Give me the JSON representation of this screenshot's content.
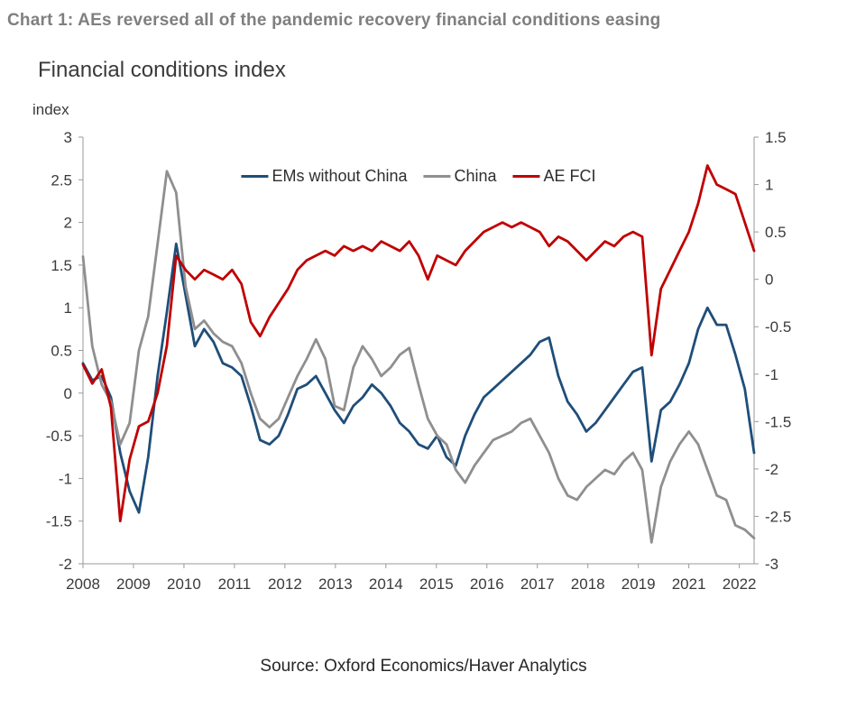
{
  "header": {
    "title": "Chart 1: AEs reversed all of the pandemic recovery financial conditions easing"
  },
  "footer": {
    "source": "Source: Oxford Economics/Haver Analytics"
  },
  "chart_data": {
    "type": "line",
    "title": "Financial conditions index",
    "grid": false,
    "legend_position": "top-center-inside",
    "x_start": 2008.0,
    "x_step": 0.2,
    "x_axis": {
      "labels": [
        "2008",
        "2009",
        "2010",
        "2011",
        "2012",
        "2013",
        "2014",
        "2015",
        "2016",
        "2017",
        "2018",
        "2019",
        "2021",
        "2022"
      ],
      "first_label_x": 2008.0,
      "label_step_years": 1.0833
    },
    "left_axis": {
      "unit": "index",
      "min": -2,
      "max": 3,
      "tick_labels": [
        "3",
        "2.5",
        "2",
        "1.5",
        "1",
        "0.5",
        "0",
        "-0.5",
        "-1",
        "-1.5",
        "-2"
      ]
    },
    "right_axis": {
      "min": -3,
      "max": 1.5,
      "tick_labels": [
        "1.5",
        "1",
        "0.5",
        "0",
        "-0.5",
        "-1",
        "-1.5",
        "-2",
        "-2.5",
        "-3"
      ]
    },
    "series": [
      {
        "name": "EMs without China",
        "color": "#1F4E79",
        "axis": "left",
        "values": [
          0.35,
          0.15,
          0.2,
          -0.05,
          -0.7,
          -1.15,
          -1.4,
          -0.75,
          0.2,
          0.95,
          1.75,
          1.15,
          0.55,
          0.75,
          0.6,
          0.35,
          0.3,
          0.2,
          -0.15,
          -0.55,
          -0.6,
          -0.5,
          -0.25,
          0.05,
          0.1,
          0.2,
          0,
          -0.2,
          -0.35,
          -0.15,
          -0.05,
          0.1,
          0,
          -0.15,
          -0.35,
          -0.45,
          -0.6,
          -0.65,
          -0.5,
          -0.75,
          -0.85,
          -0.5,
          -0.25,
          -0.05,
          0.05,
          0.15,
          0.25,
          0.35,
          0.45,
          0.6,
          0.65,
          0.2,
          -0.1,
          -0.25,
          -0.45,
          -0.35,
          -0.2,
          -0.05,
          0.1,
          0.25,
          0.3,
          -0.8,
          -0.2,
          -0.1,
          0.1,
          0.35,
          0.75,
          1.0,
          0.8,
          0.8,
          0.45,
          0.05,
          -0.7
        ]
      },
      {
        "name": "China",
        "color": "#8F8F8F",
        "axis": "left",
        "values": [
          1.6,
          0.55,
          0.1,
          -0.1,
          -0.6,
          -0.35,
          0.5,
          0.9,
          1.75,
          2.6,
          2.35,
          1.25,
          0.75,
          0.85,
          0.7,
          0.6,
          0.55,
          0.35,
          0,
          -0.3,
          -0.4,
          -0.3,
          -0.05,
          0.2,
          0.4,
          0.63,
          0.4,
          -0.15,
          -0.2,
          0.3,
          0.55,
          0.4,
          0.2,
          0.3,
          0.45,
          0.53,
          0.1,
          -0.3,
          -0.5,
          -0.6,
          -0.9,
          -1.05,
          -0.85,
          -0.7,
          -0.55,
          -0.5,
          -0.45,
          -0.35,
          -0.3,
          -0.5,
          -0.7,
          -1.0,
          -1.2,
          -1.25,
          -1.1,
          -1.0,
          -0.9,
          -0.95,
          -0.8,
          -0.7,
          -0.9,
          -1.75,
          -1.1,
          -0.8,
          -0.6,
          -0.45,
          -0.6,
          -0.9,
          -1.2,
          -1.25,
          -1.55,
          -1.6,
          -1.7
        ]
      },
      {
        "name": "AE FCI",
        "color": "#C00000",
        "axis": "right",
        "values": [
          -0.9,
          -1.1,
          -0.95,
          -1.35,
          -2.55,
          -1.9,
          -1.55,
          -1.5,
          -1.2,
          -0.7,
          0.25,
          0.1,
          0,
          0.1,
          0.05,
          0,
          0.1,
          -0.05,
          -0.45,
          -0.6,
          -0.4,
          -0.25,
          -0.1,
          0.1,
          0.2,
          0.25,
          0.3,
          0.25,
          0.35,
          0.3,
          0.35,
          0.3,
          0.4,
          0.35,
          0.3,
          0.4,
          0.25,
          0,
          0.25,
          0.2,
          0.15,
          0.3,
          0.4,
          0.5,
          0.55,
          0.6,
          0.55,
          0.6,
          0.55,
          0.5,
          0.35,
          0.45,
          0.4,
          0.3,
          0.2,
          0.3,
          0.4,
          0.35,
          0.45,
          0.5,
          0.45,
          -0.8,
          -0.1,
          0.1,
          0.3,
          0.5,
          0.8,
          1.2,
          1.0,
          0.95,
          0.9,
          0.6,
          0.3
        ]
      }
    ]
  }
}
